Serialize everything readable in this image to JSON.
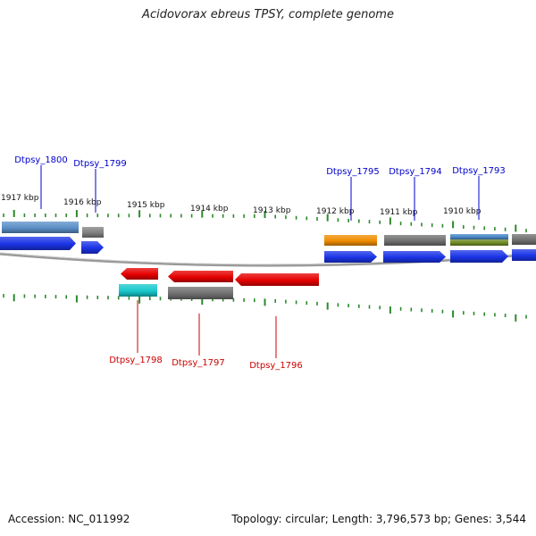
{
  "title": "Acidovorax ebreus TPSY, complete genome",
  "footer": {
    "accession": "Accession: NC_011992",
    "info": "Topology: circular; Length: 3,796,573 bp; Genes: 3,544"
  },
  "colors": {
    "forward_label": "#0000cc",
    "reverse_label": "#cc0000",
    "tick": "#2a8a2a",
    "backbone": "#888888"
  },
  "kbp_labels": [
    "1917 kbp",
    "1916 kbp",
    "1915 kbp",
    "1914 kbp",
    "1913 kbp",
    "1912 kbp",
    "1911 kbp",
    "1910 kbp"
  ],
  "forward_genes": [
    {
      "label": "Dtpsy_1800"
    },
    {
      "label": "Dtpsy_1799"
    },
    {
      "label": "Dtpsy_1795"
    },
    {
      "label": "Dtpsy_1794"
    },
    {
      "label": "Dtpsy_1793"
    }
  ],
  "reverse_genes": [
    {
      "label": "Dtpsy_1798"
    },
    {
      "label": "Dtpsy_1797"
    },
    {
      "label": "Dtpsy_1796"
    }
  ]
}
